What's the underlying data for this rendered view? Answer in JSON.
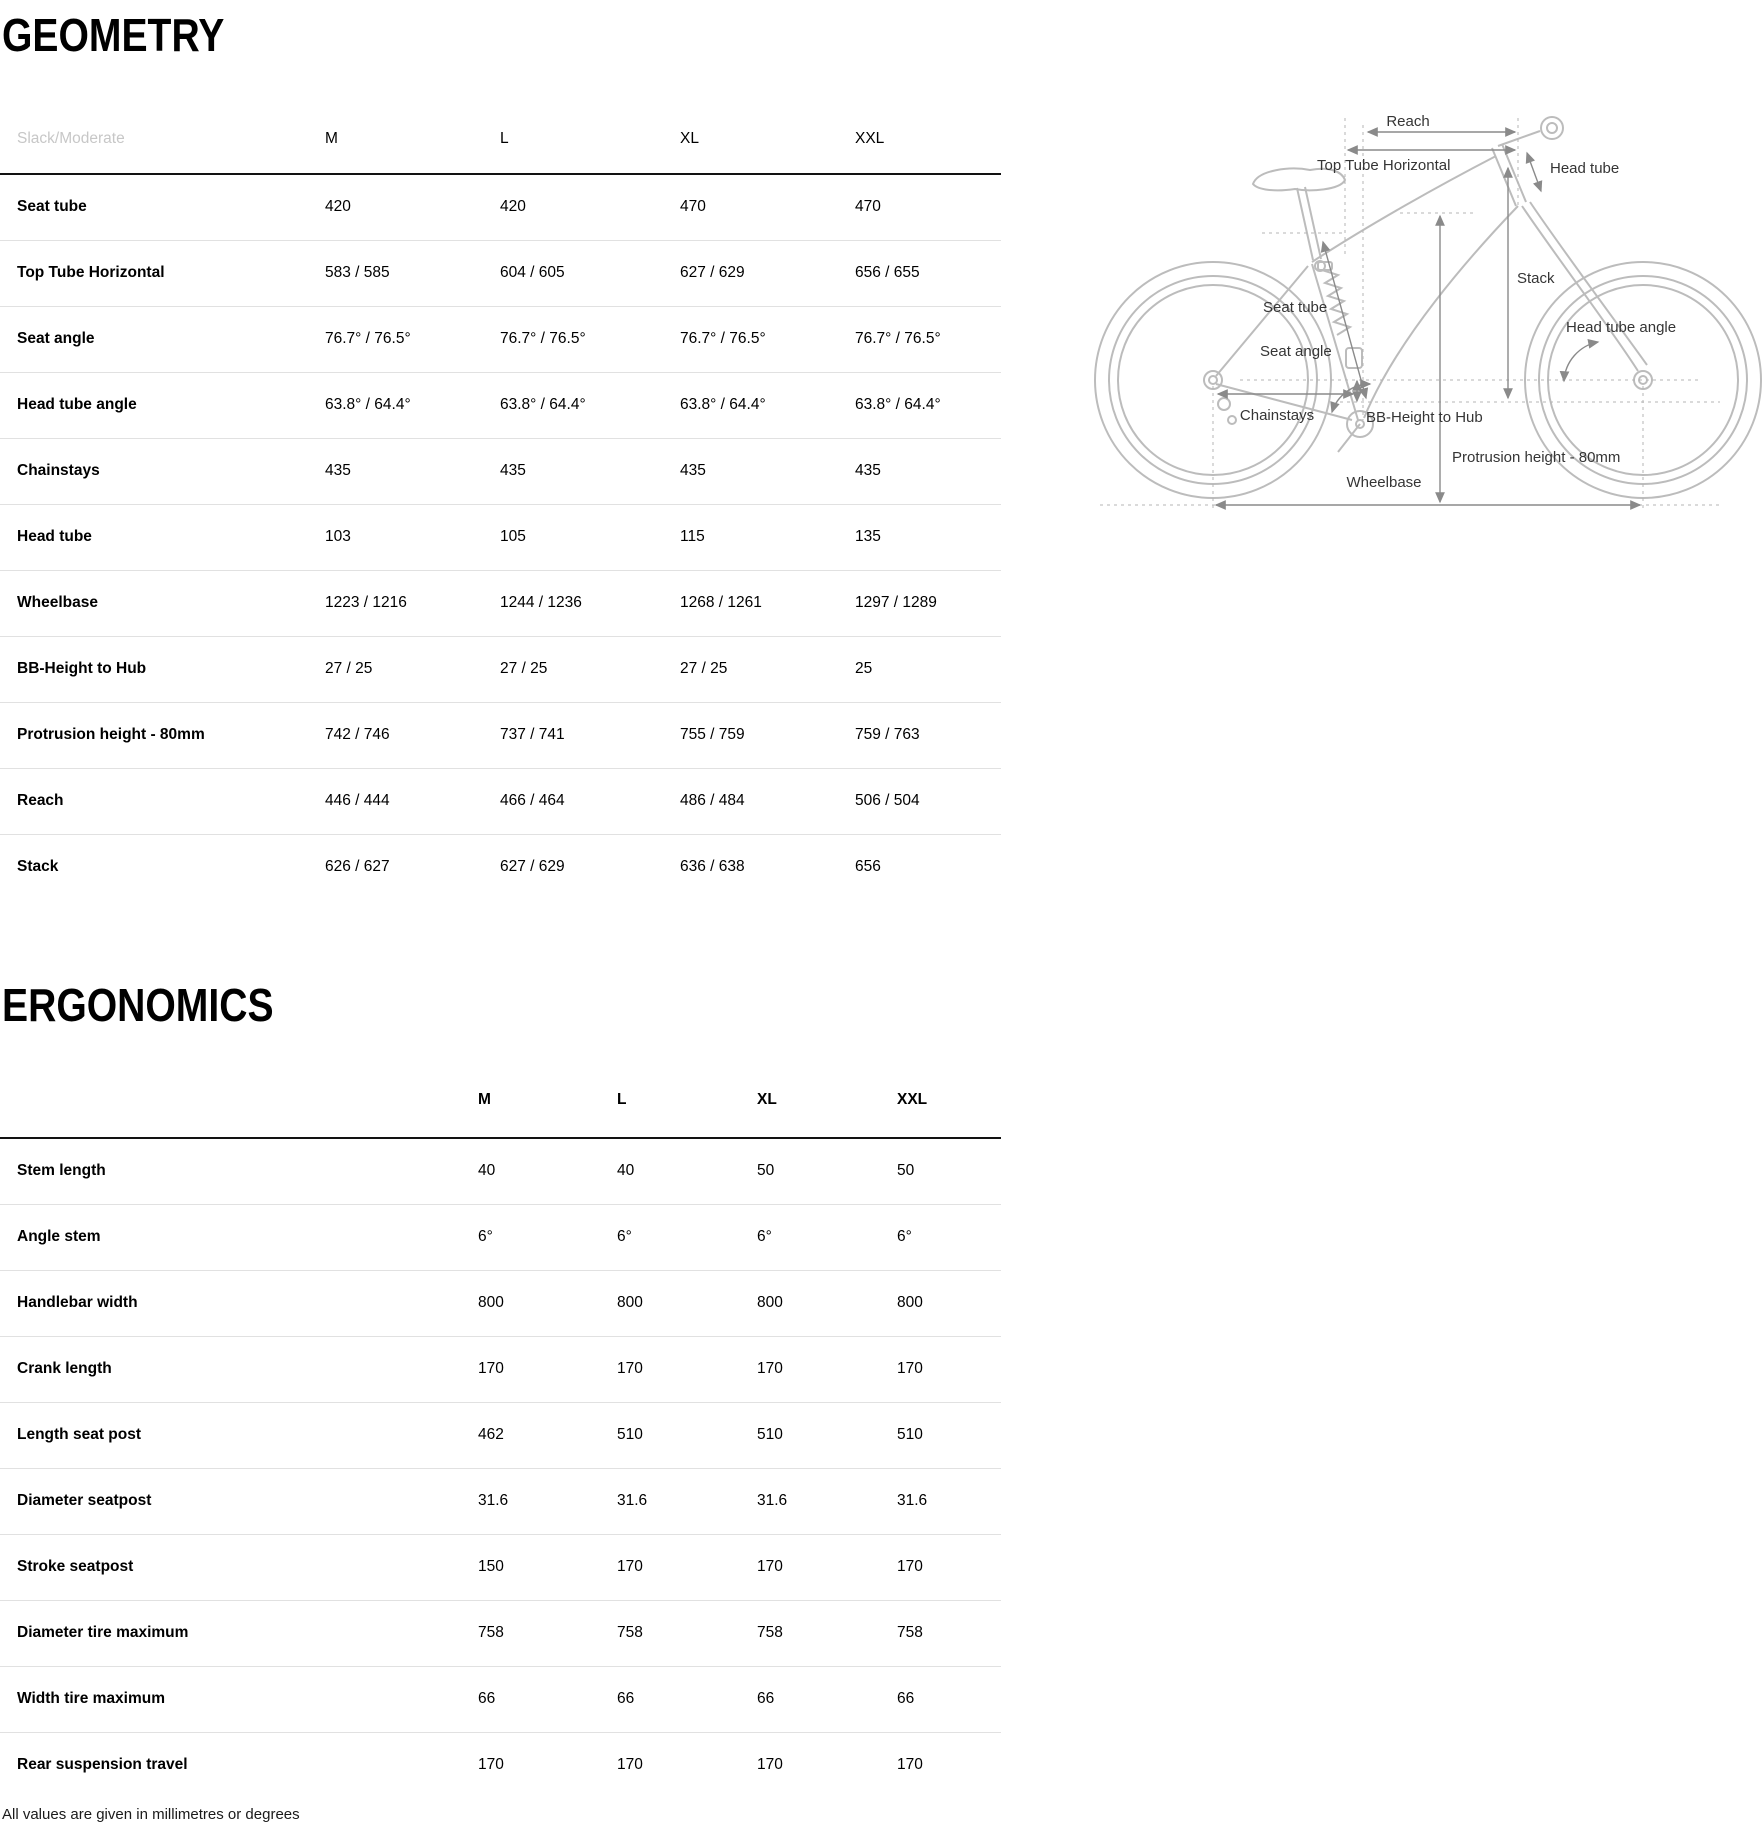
{
  "page": {
    "footnote": "All values are given in millimetres or degrees"
  },
  "geometry": {
    "title": "GEOMETRY",
    "header": {
      "label": "Slack/Moderate",
      "columns": [
        "M",
        "L",
        "XL",
        "XXL"
      ]
    },
    "rows": [
      {
        "label": "Seat tube",
        "values": [
          "420",
          "420",
          "470",
          "470"
        ]
      },
      {
        "label": "Top Tube Horizontal",
        "values": [
          "583 / 585",
          "604 / 605",
          "627 / 629",
          "656 / 655"
        ]
      },
      {
        "label": "Seat angle",
        "values": [
          "76.7° / 76.5°",
          "76.7° / 76.5°",
          "76.7° / 76.5°",
          "76.7° / 76.5°"
        ]
      },
      {
        "label": "Head tube angle",
        "values": [
          "63.8° / 64.4°",
          "63.8° / 64.4°",
          "63.8° / 64.4°",
          "63.8° / 64.4°"
        ]
      },
      {
        "label": "Chainstays",
        "values": [
          "435",
          "435",
          "435",
          "435"
        ]
      },
      {
        "label": "Head tube",
        "values": [
          "103",
          "105",
          "115",
          "135"
        ]
      },
      {
        "label": "Wheelbase",
        "values": [
          "1223 / 1216",
          "1244 / 1236",
          "1268 / 1261",
          "1297 / 1289"
        ]
      },
      {
        "label": "BB-Height to Hub",
        "values": [
          "27 / 25",
          "27 / 25",
          "27 / 25",
          "25"
        ]
      },
      {
        "label": "Protrusion height - 80mm",
        "values": [
          "742 / 746",
          "737 / 741",
          "755 / 759",
          "759 / 763"
        ]
      },
      {
        "label": "Reach",
        "values": [
          "446 / 444",
          "466 / 464",
          "486 / 484",
          "506 / 504"
        ]
      },
      {
        "label": "Stack",
        "values": [
          "626 / 627",
          "627 / 629",
          "636 / 638",
          "656"
        ]
      }
    ]
  },
  "ergonomics": {
    "title": "ERGONOMICS",
    "header": {
      "columns": [
        "M",
        "L",
        "XL",
        "XXL"
      ]
    },
    "rows": [
      {
        "label": "Stem length",
        "values": [
          "40",
          "40",
          "50",
          "50"
        ]
      },
      {
        "label": "Angle stem",
        "values": [
          "6°",
          "6°",
          "6°",
          "6°"
        ]
      },
      {
        "label": "Handlebar width",
        "values": [
          "800",
          "800",
          "800",
          "800"
        ]
      },
      {
        "label": "Crank length",
        "values": [
          "170",
          "170",
          "170",
          "170"
        ]
      },
      {
        "label": "Length seat post",
        "values": [
          "462",
          "510",
          "510",
          "510"
        ]
      },
      {
        "label": "Diameter seatpost",
        "values": [
          "31.6",
          "31.6",
          "31.6",
          "31.6"
        ]
      },
      {
        "label": "Stroke seatpost",
        "values": [
          "150",
          "170",
          "170",
          "170"
        ]
      },
      {
        "label": "Diameter tire maximum",
        "values": [
          "758",
          "758",
          "758",
          "758"
        ]
      },
      {
        "label": "Width tire maximum",
        "values": [
          "66",
          "66",
          "66",
          "66"
        ]
      },
      {
        "label": "Rear suspension travel",
        "values": [
          "170",
          "170",
          "170",
          "170"
        ]
      }
    ]
  },
  "diagram": {
    "labels": {
      "reach": "Reach",
      "top_tube_horizontal": "Top Tube Horizontal",
      "head_tube": "Head tube",
      "stack": "Stack",
      "seat_tube": "Seat tube",
      "seat_angle": "Seat angle",
      "head_tube_angle": "Head tube angle",
      "chainstays": "Chainstays",
      "bb_height_to_hub": "BB-Height to Hub",
      "protrusion_height": "Protrusion height - 80mm",
      "wheelbase": "Wheelbase"
    }
  }
}
